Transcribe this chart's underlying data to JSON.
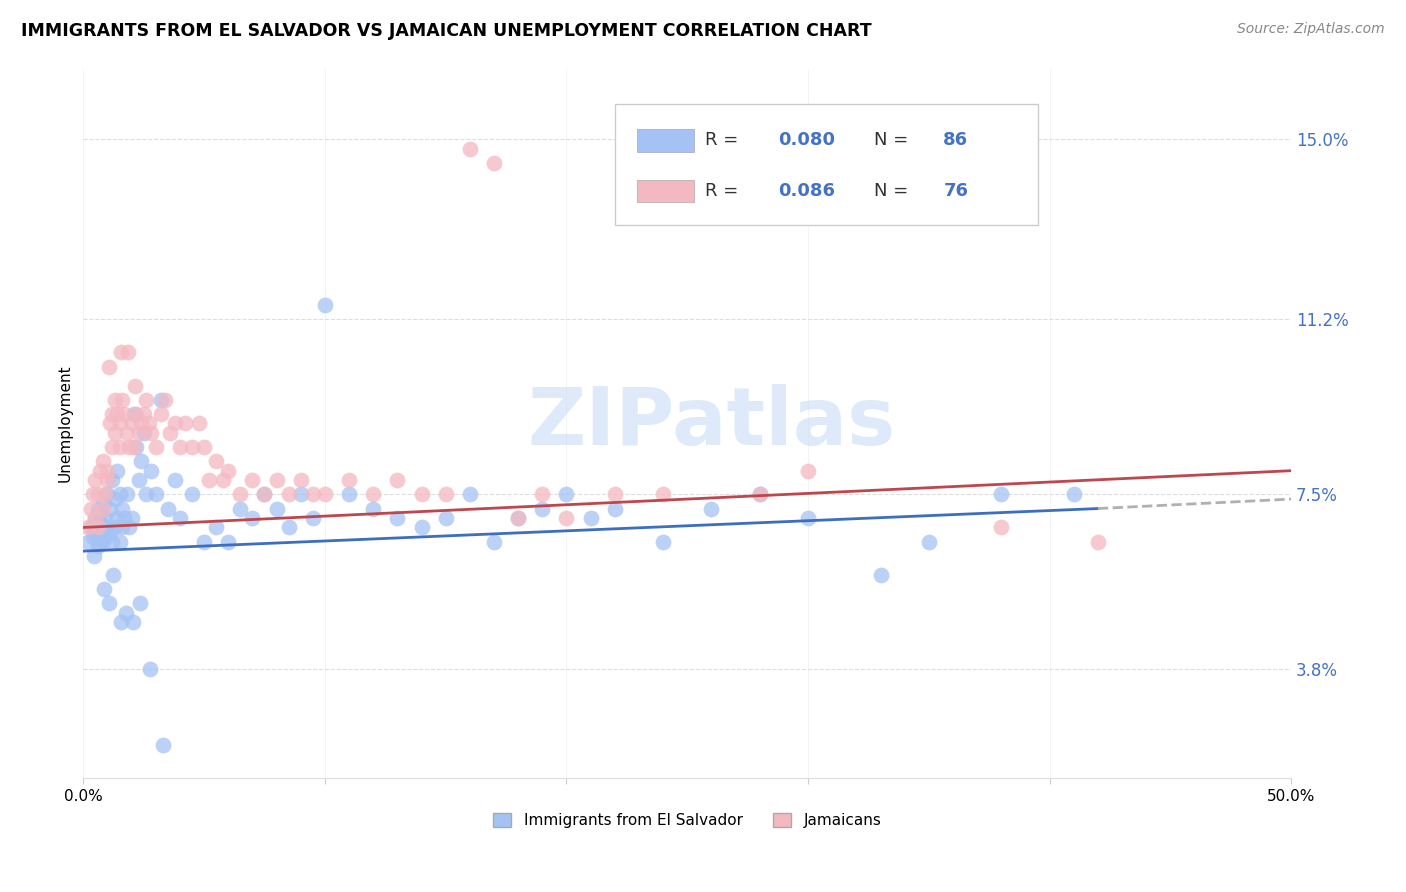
{
  "title": "IMMIGRANTS FROM EL SALVADOR VS JAMAICAN UNEMPLOYMENT CORRELATION CHART",
  "source": "Source: ZipAtlas.com",
  "ylabel": "Unemployment",
  "yticks": [
    3.8,
    7.5,
    11.2,
    15.0
  ],
  "ytick_labels": [
    "3.8%",
    "7.5%",
    "11.2%",
    "15.0%"
  ],
  "xmin": 0.0,
  "xmax": 50.0,
  "ymin": 1.5,
  "ymax": 16.5,
  "label1": "Immigrants from El Salvador",
  "label2": "Jamaicans",
  "color1": "#a4c2f4",
  "color2": "#f4b8c1",
  "line1_color": "#3d6ebf",
  "line2_color": "#c0464e",
  "trend_dash_color": "#b0b0b0",
  "watermark": "ZIPatlas",
  "watermark_color": "#c8ddf5",
  "scatter1_x": [
    0.2,
    0.3,
    0.4,
    0.5,
    0.5,
    0.6,
    0.6,
    0.7,
    0.7,
    0.8,
    0.8,
    0.9,
    0.9,
    1.0,
    1.0,
    1.1,
    1.1,
    1.2,
    1.2,
    1.3,
    1.3,
    1.4,
    1.4,
    1.5,
    1.5,
    1.6,
    1.6,
    1.7,
    1.8,
    1.9,
    2.0,
    2.1,
    2.2,
    2.3,
    2.4,
    2.5,
    2.6,
    2.8,
    3.0,
    3.2,
    3.5,
    3.8,
    4.0,
    4.5,
    5.0,
    5.5,
    6.0,
    6.5,
    7.0,
    7.5,
    8.0,
    8.5,
    9.0,
    9.5,
    10.0,
    11.0,
    12.0,
    13.0,
    14.0,
    15.0,
    16.0,
    17.0,
    18.0,
    19.0,
    20.0,
    21.0,
    22.0,
    24.0,
    26.0,
    28.0,
    30.0,
    33.0,
    35.0,
    38.0,
    41.0,
    0.45,
    0.65,
    0.85,
    1.05,
    1.25,
    1.55,
    1.75,
    2.05,
    2.35,
    2.75,
    3.3
  ],
  "scatter1_y": [
    6.5,
    6.8,
    6.6,
    6.7,
    7.0,
    6.4,
    7.2,
    6.9,
    7.1,
    6.5,
    7.3,
    6.6,
    7.0,
    6.8,
    7.5,
    6.7,
    7.2,
    6.5,
    7.8,
    6.8,
    7.4,
    7.0,
    8.0,
    6.5,
    7.5,
    6.8,
    7.2,
    7.0,
    7.5,
    6.8,
    7.0,
    9.2,
    8.5,
    7.8,
    8.2,
    8.8,
    7.5,
    8.0,
    7.5,
    9.5,
    7.2,
    7.8,
    7.0,
    7.5,
    6.5,
    6.8,
    6.5,
    7.2,
    7.0,
    7.5,
    7.2,
    6.8,
    7.5,
    7.0,
    11.5,
    7.5,
    7.2,
    7.0,
    6.8,
    7.0,
    7.5,
    6.5,
    7.0,
    7.2,
    7.5,
    7.0,
    7.2,
    6.5,
    7.2,
    7.5,
    7.0,
    5.8,
    6.5,
    7.5,
    7.5,
    6.2,
    6.5,
    5.5,
    5.2,
    5.8,
    4.8,
    5.0,
    4.8,
    5.2,
    3.8,
    2.2
  ],
  "scatter2_x": [
    0.2,
    0.3,
    0.4,
    0.5,
    0.5,
    0.6,
    0.6,
    0.7,
    0.8,
    0.8,
    0.9,
    1.0,
    1.0,
    1.1,
    1.2,
    1.2,
    1.3,
    1.3,
    1.4,
    1.5,
    1.5,
    1.6,
    1.7,
    1.8,
    1.9,
    2.0,
    2.1,
    2.2,
    2.3,
    2.4,
    2.5,
    2.6,
    2.7,
    2.8,
    3.0,
    3.2,
    3.4,
    3.6,
    3.8,
    4.0,
    4.2,
    4.5,
    4.8,
    5.0,
    5.2,
    5.5,
    5.8,
    6.0,
    6.5,
    7.0,
    7.5,
    8.0,
    8.5,
    9.0,
    9.5,
    10.0,
    11.0,
    12.0,
    13.0,
    14.0,
    15.0,
    16.0,
    17.0,
    18.0,
    19.0,
    20.0,
    22.0,
    24.0,
    28.0,
    30.0,
    38.0,
    42.0,
    1.05,
    1.55,
    1.85,
    2.15
  ],
  "scatter2_y": [
    6.8,
    7.2,
    7.5,
    7.0,
    7.8,
    6.8,
    7.5,
    8.0,
    7.2,
    8.2,
    7.5,
    8.0,
    7.8,
    9.0,
    9.2,
    8.5,
    8.8,
    9.5,
    9.2,
    8.5,
    9.0,
    9.5,
    9.2,
    8.8,
    8.5,
    9.0,
    8.5,
    9.2,
    8.8,
    9.0,
    9.2,
    9.5,
    9.0,
    8.8,
    8.5,
    9.2,
    9.5,
    8.8,
    9.0,
    8.5,
    9.0,
    8.5,
    9.0,
    8.5,
    7.8,
    8.2,
    7.8,
    8.0,
    7.5,
    7.8,
    7.5,
    7.8,
    7.5,
    7.8,
    7.5,
    7.5,
    7.8,
    7.5,
    7.8,
    7.5,
    7.5,
    14.8,
    14.5,
    7.0,
    7.5,
    7.0,
    7.5,
    7.5,
    7.5,
    8.0,
    6.8,
    6.5,
    10.2,
    10.5,
    10.5,
    9.8
  ]
}
